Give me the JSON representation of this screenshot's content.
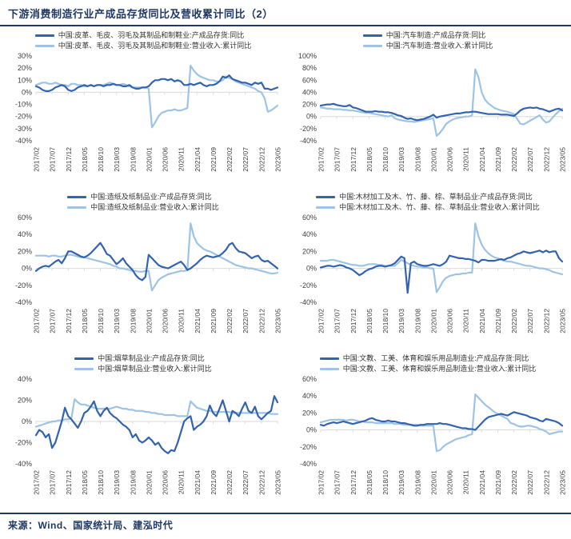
{
  "title": "下游消费制造行业产成品存货同比及营收累计同比（2）",
  "footer": {
    "source": "来源：Wind、国家统计局、建泓时代"
  },
  "colors": {
    "dark": "#3263AE",
    "light": "#9DC3E6",
    "title_navy": "#1F3864",
    "grid": "#D9D9D9",
    "axis_text": "#404040"
  },
  "x_tick_labels": [
    "2017/02",
    "2017/07",
    "2017/12",
    "2018/05",
    "2018/10",
    "2019/03",
    "2019/08",
    "2020/01",
    "2020/06",
    "2020/11",
    "2021/04",
    "2021/09",
    "2022/02",
    "2022/07",
    "2022/12",
    "2023/05"
  ],
  "x_frequency": "monthly 2017/02 - 2023/05",
  "chart_data": [
    {
      "id": "chart-leather-footwear",
      "type": "line",
      "y_max": 30,
      "y_min": -40,
      "y_ticks": [
        30,
        20,
        10,
        0,
        -10,
        -20,
        -30,
        -40
      ],
      "legend_position": "top",
      "series": [
        {
          "name": "中国:皮革、毛皮、羽毛及其制品和制鞋业:产成品存货:同比",
          "color": "dark",
          "values": [
            5,
            4,
            2,
            1,
            1,
            2,
            4,
            5,
            6,
            5,
            2,
            1,
            2,
            4,
            5,
            6,
            5,
            6,
            5,
            6,
            6,
            5,
            6,
            6,
            7,
            6,
            6,
            5,
            5,
            6,
            4,
            3,
            3,
            4,
            4,
            5,
            8,
            10,
            10,
            11,
            11,
            10,
            11,
            9,
            10,
            9,
            6,
            6,
            7,
            6,
            7,
            8,
            6,
            5,
            6,
            6,
            7,
            9,
            13,
            12,
            14,
            11,
            10,
            9,
            8,
            8,
            7,
            6,
            8,
            7,
            8,
            3,
            3,
            2,
            3,
            4
          ]
        },
        {
          "name": "中国:皮革、毛皮、羽毛及其制品和制鞋业:营业收入:累计同比",
          "color": "light",
          "values": [
            6,
            7,
            8,
            8,
            7,
            7,
            8,
            7,
            6,
            6,
            5,
            7,
            7,
            6,
            6,
            5,
            5,
            6,
            5,
            6,
            6,
            6,
            7,
            8,
            7,
            6,
            6,
            7,
            6,
            5,
            4,
            4,
            4,
            4,
            4,
            3,
            -29,
            -25,
            -20,
            -17,
            -16,
            -15,
            -15,
            -14,
            -15,
            -15,
            -14,
            -13,
            22,
            18,
            15,
            13,
            12,
            11,
            10,
            10,
            9,
            9,
            10,
            13,
            12,
            11,
            9,
            8,
            7,
            6,
            5,
            4,
            3,
            1,
            0,
            -5,
            -16,
            -15,
            -13,
            -11
          ]
        }
      ]
    },
    {
      "id": "chart-automobile",
      "type": "line",
      "y_max": 100,
      "y_min": -40,
      "y_ticks": [
        100,
        80,
        60,
        40,
        20,
        0,
        -20,
        -40
      ],
      "legend_position": "top",
      "series": [
        {
          "name": "中国:汽车制造:产成品存货:同比",
          "color": "dark",
          "values": [
            18,
            19,
            20,
            20,
            21,
            19,
            18,
            17,
            17,
            19,
            15,
            14,
            12,
            10,
            8,
            8,
            8,
            9,
            8,
            8,
            7,
            7,
            6,
            4,
            2,
            1,
            -2,
            -4,
            -3,
            -5,
            -6,
            -5,
            -4,
            -2,
            0,
            3,
            -2,
            0,
            1,
            2,
            3,
            4,
            5,
            5,
            6,
            7,
            7,
            8,
            8,
            7,
            6,
            5,
            4,
            4,
            4,
            4,
            3,
            3,
            3,
            2,
            1,
            5,
            10,
            13,
            14,
            15,
            14,
            15,
            13,
            12,
            10,
            8,
            10,
            12,
            13,
            10
          ]
        },
        {
          "name": "中国:汽车制造:营业收入:累计同比",
          "color": "light",
          "values": [
            15,
            14,
            13,
            13,
            12,
            12,
            12,
            11,
            11,
            10,
            10,
            9,
            8,
            7,
            6,
            6,
            5,
            4,
            3,
            2,
            1,
            0,
            2,
            -3,
            -5,
            -6,
            -7,
            -8,
            -8,
            -9,
            -8,
            -7,
            -6,
            -5,
            -4,
            -3,
            -32,
            -27,
            -20,
            -12,
            -8,
            -5,
            -3,
            -2,
            -1,
            0,
            0,
            2,
            78,
            65,
            40,
            28,
            22,
            18,
            14,
            12,
            10,
            9,
            8,
            6,
            4,
            -4,
            -12,
            -13,
            -10,
            -7,
            -4,
            -1,
            2,
            -5,
            -10,
            -8,
            -2,
            4,
            9,
            13
          ]
        }
      ]
    },
    {
      "id": "chart-paper",
      "type": "line",
      "y_max": 60,
      "y_min": -40,
      "y_ticks": [
        60,
        40,
        20,
        0,
        -20,
        -40
      ],
      "legend_position": "top",
      "series": [
        {
          "name": "中国:造纸及纸制品业:产成品存货:同比",
          "color": "dark",
          "values": [
            -3,
            0,
            2,
            3,
            2,
            5,
            8,
            10,
            6,
            12,
            20,
            20,
            18,
            16,
            14,
            13,
            15,
            18,
            22,
            26,
            30,
            24,
            17,
            15,
            10,
            5,
            8,
            12,
            6,
            2,
            -2,
            -8,
            -12,
            -14,
            -10,
            16,
            12,
            8,
            4,
            2,
            1,
            0,
            2,
            4,
            6,
            8,
            4,
            -2,
            0,
            3,
            6,
            10,
            13,
            15,
            14,
            13,
            14,
            15,
            18,
            22,
            28,
            30,
            24,
            20,
            19,
            18,
            15,
            12,
            14,
            15,
            10,
            8,
            9,
            6,
            3,
            0
          ]
        },
        {
          "name": "中国:造纸及纸制品业:营业收入:累计同比",
          "color": "light",
          "values": [
            15,
            15,
            15,
            15,
            14,
            15,
            15,
            14,
            14,
            15,
            16,
            16,
            15,
            14,
            13,
            13,
            12,
            11,
            10,
            9,
            8,
            7,
            6,
            5,
            3,
            2,
            0,
            0,
            -1,
            -2,
            -3,
            -3,
            -4,
            -4,
            -3,
            -3,
            -26,
            -20,
            -14,
            -11,
            -9,
            -7,
            -6,
            -5,
            -4,
            -3,
            -3,
            -2,
            53,
            38,
            30,
            26,
            23,
            21,
            20,
            18,
            16,
            14,
            12,
            10,
            8,
            6,
            4,
            3,
            2,
            1,
            0,
            0,
            -1,
            -2,
            -3,
            -4,
            -5,
            -6,
            -6,
            -5
          ]
        }
      ]
    },
    {
      "id": "chart-wood-products",
      "type": "line",
      "y_max": 60,
      "y_min": -40,
      "y_ticks": [
        60,
        40,
        20,
        0,
        -20,
        -40
      ],
      "legend_position": "top",
      "series": [
        {
          "name": "中国:木材加工及木、竹、藤、棕、草制品业:产成品存货:同比",
          "color": "dark",
          "values": [
            1,
            2,
            3,
            3,
            2,
            3,
            4,
            3,
            1,
            0,
            -2,
            -5,
            -8,
            -6,
            -3,
            -1,
            0,
            2,
            3,
            3,
            2,
            3,
            4,
            6,
            10,
            14,
            12,
            -29,
            6,
            8,
            5,
            4,
            3,
            3,
            4,
            5,
            4,
            3,
            5,
            8,
            15,
            14,
            13,
            12,
            12,
            11,
            11,
            10,
            9,
            7,
            10,
            10,
            9,
            9,
            9,
            10,
            11,
            10,
            12,
            13,
            15,
            17,
            18,
            20,
            19,
            18,
            19,
            20,
            21,
            19,
            21,
            19,
            20,
            20,
            12,
            8
          ]
        },
        {
          "name": "中国:木材加工及木、竹、藤、棕、草制品业:营业收入:累计同比",
          "color": "light",
          "values": [
            9,
            9,
            9,
            10,
            10,
            9,
            8,
            7,
            6,
            5,
            4,
            4,
            3,
            3,
            4,
            5,
            5,
            5,
            4,
            4,
            3,
            3,
            3,
            3,
            6,
            10,
            8,
            6,
            4,
            3,
            2,
            2,
            1,
            1,
            0,
            0,
            -28,
            -22,
            -15,
            -11,
            -9,
            -8,
            -7,
            -7,
            -6,
            -6,
            -5,
            -5,
            53,
            38,
            28,
            22,
            18,
            15,
            13,
            12,
            10,
            9,
            8,
            8,
            7,
            6,
            5,
            4,
            3,
            3,
            2,
            1,
            0,
            0,
            -1,
            -2,
            -4,
            -5,
            -6,
            -7
          ]
        }
      ]
    },
    {
      "id": "chart-tobacco",
      "type": "line",
      "y_max": 40,
      "y_min": -40,
      "y_ticks": [
        40,
        20,
        0,
        -20,
        -40
      ],
      "legend_position": "top",
      "series": [
        {
          "name": "中国:烟草制品业:产成品存货:同比",
          "color": "dark",
          "values": [
            -13,
            -8,
            -10,
            -15,
            -12,
            -25,
            -20,
            -10,
            0,
            13,
            5,
            2,
            -2,
            -6,
            0,
            8,
            10,
            14,
            19,
            10,
            5,
            10,
            13,
            8,
            5,
            3,
            0,
            -3,
            -5,
            -8,
            -15,
            -12,
            -18,
            -20,
            -18,
            -15,
            -18,
            -22,
            -20,
            -25,
            -28,
            -30,
            -27,
            -28,
            -20,
            -10,
            0,
            3,
            5,
            -8,
            -5,
            -3,
            0,
            5,
            15,
            8,
            5,
            12,
            20,
            10,
            0,
            10,
            8,
            5,
            12,
            18,
            10,
            8,
            14,
            5,
            2,
            5,
            8,
            10,
            24,
            18
          ]
        },
        {
          "name": "中国:烟草制品业:营业收入:累计同比",
          "color": "light",
          "values": [
            -5,
            -4,
            -3,
            -2,
            -1,
            0,
            0,
            1,
            1,
            2,
            2,
            3,
            21,
            18,
            16,
            16,
            15,
            14,
            13,
            12,
            12,
            12,
            12,
            12,
            13,
            14,
            13,
            12,
            12,
            11,
            11,
            10,
            10,
            10,
            9,
            9,
            8,
            8,
            7,
            7,
            6,
            6,
            6,
            6,
            5,
            5,
            5,
            5,
            19,
            16,
            13,
            12,
            11,
            10,
            10,
            9,
            9,
            9,
            9,
            9,
            9,
            8,
            8,
            8,
            8,
            8,
            8,
            8,
            8,
            8,
            8,
            8,
            8,
            7,
            7,
            7
          ]
        }
      ]
    },
    {
      "id": "chart-culture-sports",
      "type": "line",
      "y_max": 60,
      "y_min": -40,
      "y_ticks": [
        60,
        40,
        20,
        0,
        -20,
        -40
      ],
      "legend_position": "top",
      "series": [
        {
          "name": "中国:文教、工美、体育和娱乐用品制造业:产成品存货:同比",
          "color": "dark",
          "values": [
            6,
            5,
            7,
            8,
            9,
            8,
            9,
            10,
            9,
            8,
            7,
            8,
            9,
            10,
            11,
            13,
            14,
            12,
            11,
            10,
            10,
            11,
            10,
            10,
            9,
            8,
            8,
            7,
            6,
            5,
            5,
            6,
            6,
            7,
            7,
            7,
            7,
            8,
            7,
            7,
            6,
            5,
            4,
            3,
            2,
            2,
            1,
            1,
            0,
            4,
            8,
            12,
            15,
            16,
            17,
            18,
            19,
            18,
            17,
            19,
            21,
            20,
            19,
            18,
            17,
            15,
            14,
            13,
            11,
            10,
            13,
            12,
            11,
            10,
            8,
            5
          ]
        },
        {
          "name": "中国:文教、工美、体育和娱乐用品制造业:营业收入:累计同比",
          "color": "light",
          "values": [
            9,
            10,
            11,
            12,
            12,
            12,
            12,
            12,
            11,
            12,
            12,
            11,
            10,
            10,
            9,
            9,
            9,
            8,
            8,
            8,
            8,
            8,
            8,
            7,
            7,
            7,
            6,
            6,
            6,
            6,
            6,
            5,
            5,
            5,
            5,
            5,
            -25,
            -24,
            -20,
            -17,
            -15,
            -13,
            -11,
            -10,
            -9,
            -8,
            -6,
            -5,
            42,
            38,
            34,
            30,
            27,
            24,
            21,
            19,
            17,
            15,
            13,
            8,
            7,
            5,
            4,
            4,
            5,
            5,
            4,
            3,
            1,
            0,
            -2,
            -5,
            -4,
            -3,
            -2,
            -2
          ]
        }
      ]
    }
  ]
}
